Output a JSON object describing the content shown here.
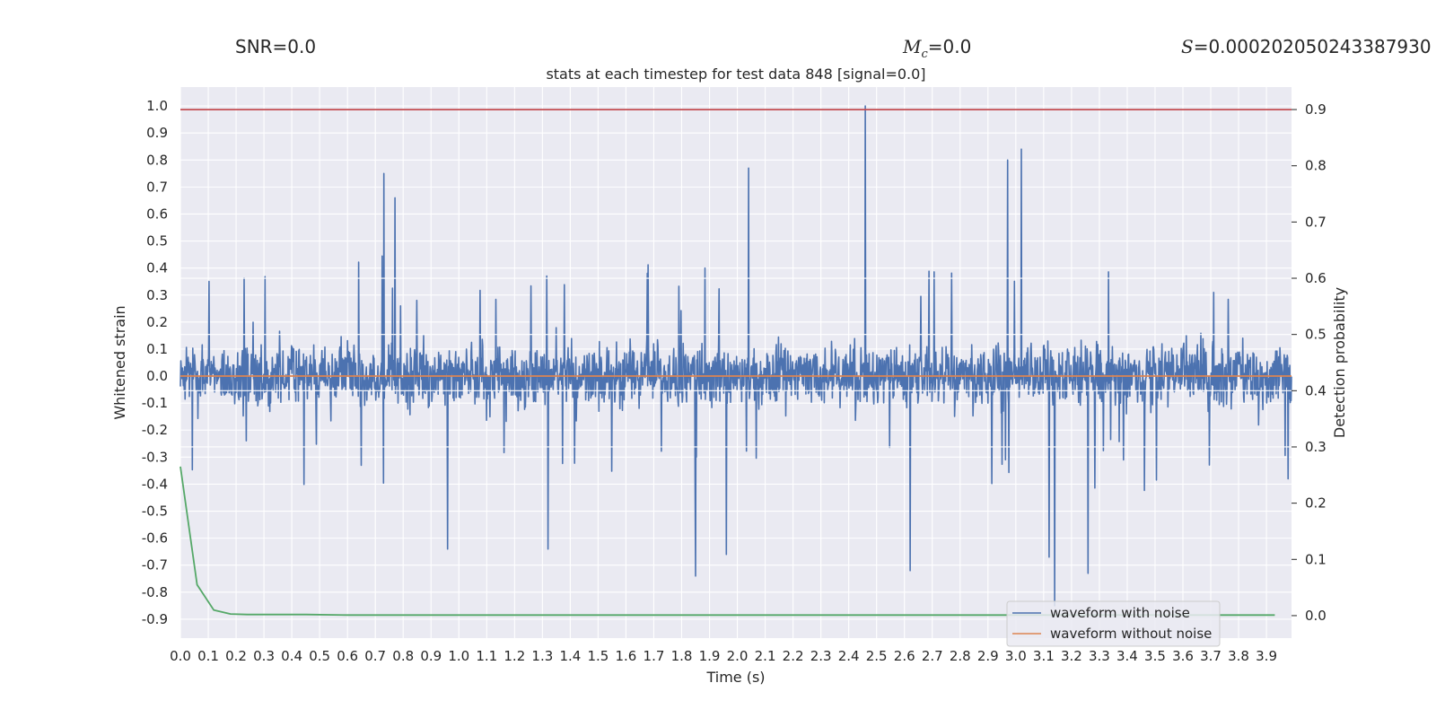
{
  "stats": {
    "snr_label": "SNR=0.0",
    "mc_symbol": "M",
    "mc_sub": "c",
    "mc_value": "=0.0",
    "s_symbol": "S",
    "s_value": "=0.000202050243387930"
  },
  "chart_data": {
    "type": "line",
    "title": "stats at each timestep for test data 848 [signal=0.0]",
    "xlabel": "Time (s)",
    "ylabel": "Whitened strain",
    "y2label": "Detection probability",
    "xlim": [
      0.0,
      3.99
    ],
    "ylim": [
      -0.97,
      1.07
    ],
    "y2lim": [
      -0.04,
      0.94
    ],
    "x_ticks": [
      "0.0",
      "0.1",
      "0.2",
      "0.3",
      "0.4",
      "0.5",
      "0.6",
      "0.7",
      "0.8",
      "0.9",
      "1.0",
      "1.1",
      "1.2",
      "1.3",
      "1.4",
      "1.5",
      "1.6",
      "1.7",
      "1.8",
      "1.9",
      "2.0",
      "2.1",
      "2.2",
      "2.3",
      "2.4",
      "2.5",
      "2.6",
      "2.7",
      "2.8",
      "2.9",
      "3.0",
      "3.1",
      "3.2",
      "3.3",
      "3.4",
      "3.5",
      "3.6",
      "3.7",
      "3.8",
      "3.9"
    ],
    "y_ticks": [
      "1.0",
      "0.9",
      "0.8",
      "0.7",
      "0.6",
      "0.5",
      "0.4",
      "0.3",
      "0.2",
      "0.1",
      "0.0",
      "-0.1",
      "-0.2",
      "-0.3",
      "-0.4",
      "-0.5",
      "-0.6",
      "-0.7",
      "-0.8",
      "-0.9"
    ],
    "y2_ticks": [
      "0.9",
      "0.8",
      "0.7",
      "0.6",
      "0.5",
      "0.4",
      "0.3",
      "0.2",
      "0.1",
      "0.0"
    ],
    "grid": true,
    "legend_position": "bottom-right",
    "colors": {
      "noise": "#4c72b0",
      "clean": "#dd8452",
      "prob": "#55a868",
      "threshold": "#c44e52",
      "background": "#eaeaf2",
      "grid": "#ffffff"
    },
    "series": [
      {
        "name": "waveform with noise",
        "note": "dense whitened noise, approx. range -0.9 to 1.0 with notable spikes",
        "spikes": [
          {
            "x": 0.73,
            "y": 0.75
          },
          {
            "x": 0.77,
            "y": 0.66
          },
          {
            "x": 2.04,
            "y": 0.77
          },
          {
            "x": 2.46,
            "y": 1.0
          },
          {
            "x": 2.97,
            "y": 0.8
          },
          {
            "x": 3.02,
            "y": 0.84
          },
          {
            "x": 3.14,
            "y": -0.85
          },
          {
            "x": 3.12,
            "y": -0.67
          },
          {
            "x": 3.26,
            "y": -0.73
          },
          {
            "x": 1.85,
            "y": -0.74
          },
          {
            "x": 2.62,
            "y": -0.72
          },
          {
            "x": 0.96,
            "y": -0.64
          },
          {
            "x": 1.96,
            "y": -0.66
          },
          {
            "x": 1.32,
            "y": -0.64
          }
        ]
      },
      {
        "name": "waveform without noise",
        "x": [
          0.0,
          3.99
        ],
        "y": [
          0.0,
          0.0
        ]
      },
      {
        "name": "detection probability",
        "axis": "right",
        "x": [
          0.0,
          0.06,
          0.12,
          0.18,
          0.24,
          0.3,
          0.45,
          0.6,
          1.0,
          2.0,
          3.0,
          3.93
        ],
        "y": [
          0.265,
          0.055,
          0.01,
          0.003,
          0.002,
          0.002,
          0.002,
          0.001,
          0.001,
          0.001,
          0.001,
          0.001
        ]
      },
      {
        "name": "threshold",
        "axis": "right",
        "x": [
          0.0,
          3.99
        ],
        "y": [
          0.9,
          0.9
        ]
      }
    ],
    "legend": [
      "waveform with noise",
      "waveform without noise"
    ]
  }
}
